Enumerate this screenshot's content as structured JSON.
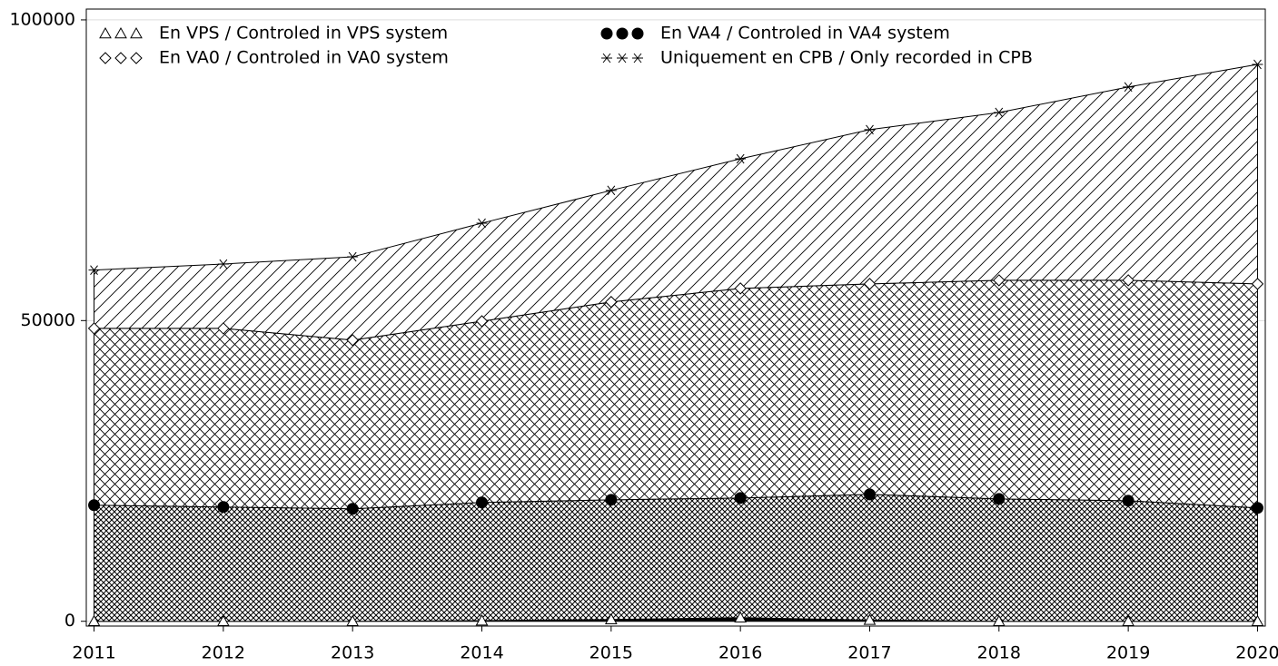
{
  "chart_data": {
    "type": "stacked_area",
    "x": [
      2011,
      2012,
      2013,
      2014,
      2015,
      2016,
      2017,
      2018,
      2019,
      2020
    ],
    "series": [
      {
        "name": "En VPS / Controled in VPS system",
        "color": "#000000",
        "marker": "triangle",
        "pattern": "solid",
        "values": [
          0,
          0,
          0,
          100,
          300,
          600,
          200,
          0,
          0,
          0
        ]
      },
      {
        "name": "En VA4 / Controled in VA4 system",
        "color": "#000000",
        "marker": "circle",
        "pattern": "fine-crosshatch",
        "values": [
          19300,
          19000,
          18700,
          19650,
          19900,
          19900,
          20900,
          20350,
          20050,
          18850
        ]
      },
      {
        "name": "En VA0 / Controled in VA0 system",
        "color": "#000000",
        "marker": "diamond",
        "pattern": "crosshatch",
        "values": [
          29400,
          29700,
          28050,
          30150,
          32900,
          34850,
          35000,
          36350,
          36650,
          37250
        ]
      },
      {
        "name": "Uniquement en CPB / Only recorded in CPB",
        "color": "#000000",
        "marker": "star",
        "pattern": "diagonal",
        "values": [
          9700,
          10700,
          13850,
          16300,
          18550,
          21550,
          25650,
          27900,
          32150,
          36500
        ]
      }
    ],
    "xlim": [
      2010.94,
      2020.06
    ],
    "xticks": [
      2011,
      2012,
      2013,
      2014,
      2015,
      2016,
      2017,
      2018,
      2019,
      2020
    ],
    "ylim": [
      -800,
      101800
    ],
    "yticks": [
      0,
      50000,
      100000
    ],
    "grid": true
  }
}
